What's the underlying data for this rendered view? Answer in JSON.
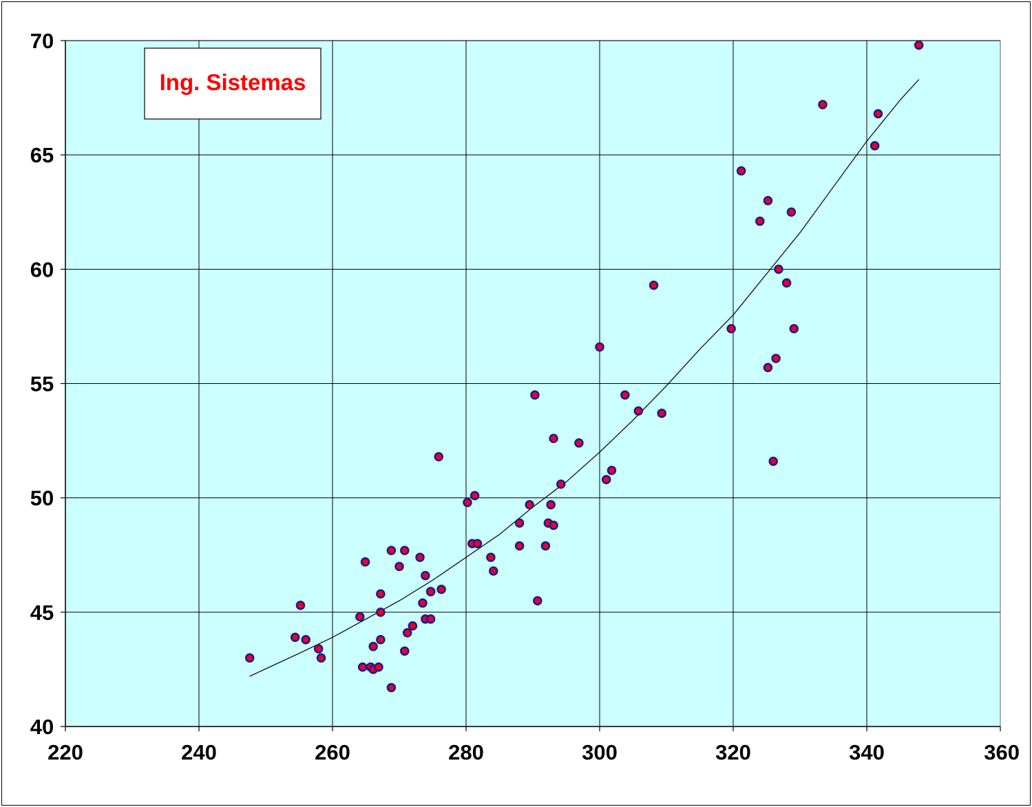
{
  "chart_data": {
    "type": "scatter",
    "title": "",
    "xlabel": "",
    "ylabel": "",
    "xlim": [
      220,
      360
    ],
    "ylim": [
      40,
      70
    ],
    "x_ticks": [
      "220",
      "240",
      "260",
      "280",
      "300",
      "320",
      "340",
      "360"
    ],
    "y_ticks": [
      "40",
      "45",
      "50",
      "55",
      "60",
      "65",
      "70"
    ],
    "grid": true,
    "legend_placement": "top-left",
    "label_box": {
      "text": "Ing. Sistemas",
      "color": "#ff0000"
    },
    "colors": {
      "plot_background": "#ccffff",
      "point_fill": "#e8002a",
      "point_edge": "#1a1a8c",
      "trend_line": "#000000",
      "grid": "#000000"
    },
    "series": [
      {
        "kind": "points",
        "x": [
          247.6,
          254.4,
          255.2,
          256.0,
          257.9,
          258.3,
          264.1,
          264.5,
          264.9,
          265.7,
          266.1,
          266.1,
          266.9,
          267.2,
          267.2,
          267.2,
          268.8,
          268.8,
          270.0,
          270.8,
          270.8,
          271.2,
          272.0,
          273.1,
          273.5,
          273.9,
          273.9,
          274.7,
          274.7,
          274.7,
          275.9,
          276.3,
          280.2,
          280.9,
          281.3,
          281.7,
          283.7,
          284.1,
          288.0,
          288.0,
          289.5,
          290.3,
          290.7,
          291.9,
          292.3,
          292.7,
          293.1,
          293.1,
          294.2,
          296.9,
          300.0,
          301.0,
          301.8,
          303.8,
          305.8,
          308.1,
          309.3,
          319.7,
          321.2,
          324.0,
          325.2,
          325.2,
          326.0,
          326.4,
          326.8,
          328.0,
          328.7,
          329.1,
          333.4,
          341.2,
          341.7,
          347.8
        ],
        "y": [
          43.0,
          43.9,
          45.3,
          43.8,
          43.4,
          43.0,
          44.8,
          42.6,
          47.2,
          42.6,
          43.5,
          42.5,
          42.6,
          45.8,
          45.0,
          43.8,
          47.7,
          41.7,
          47.0,
          47.7,
          43.3,
          44.1,
          44.4,
          47.4,
          45.4,
          46.6,
          44.7,
          45.9,
          44.7,
          45.9,
          51.8,
          46.0,
          49.8,
          48.0,
          50.1,
          48.0,
          47.4,
          46.8,
          48.9,
          47.9,
          49.7,
          54.5,
          45.5,
          47.9,
          48.9,
          49.7,
          48.8,
          52.6,
          50.6,
          52.4,
          56.6,
          50.8,
          51.2,
          54.5,
          53.8,
          59.3,
          53.7,
          57.4,
          64.3,
          62.1,
          55.7,
          63.0,
          51.6,
          56.1,
          60.0,
          59.4,
          62.5,
          57.4,
          67.2,
          65.4,
          66.8,
          69.8
        ]
      },
      {
        "kind": "trend",
        "x": [
          247.6,
          255,
          260,
          265,
          270,
          275,
          280,
          285,
          290,
          295,
          300,
          305,
          310,
          315,
          320,
          325,
          330,
          335,
          340,
          345,
          347.8
        ],
        "y": [
          42.2,
          43.2,
          43.9,
          44.7,
          45.5,
          46.4,
          47.4,
          48.4,
          49.6,
          50.7,
          52.0,
          53.4,
          54.9,
          56.5,
          58.0,
          59.8,
          61.6,
          63.6,
          65.6,
          67.4,
          68.3
        ]
      }
    ]
  }
}
